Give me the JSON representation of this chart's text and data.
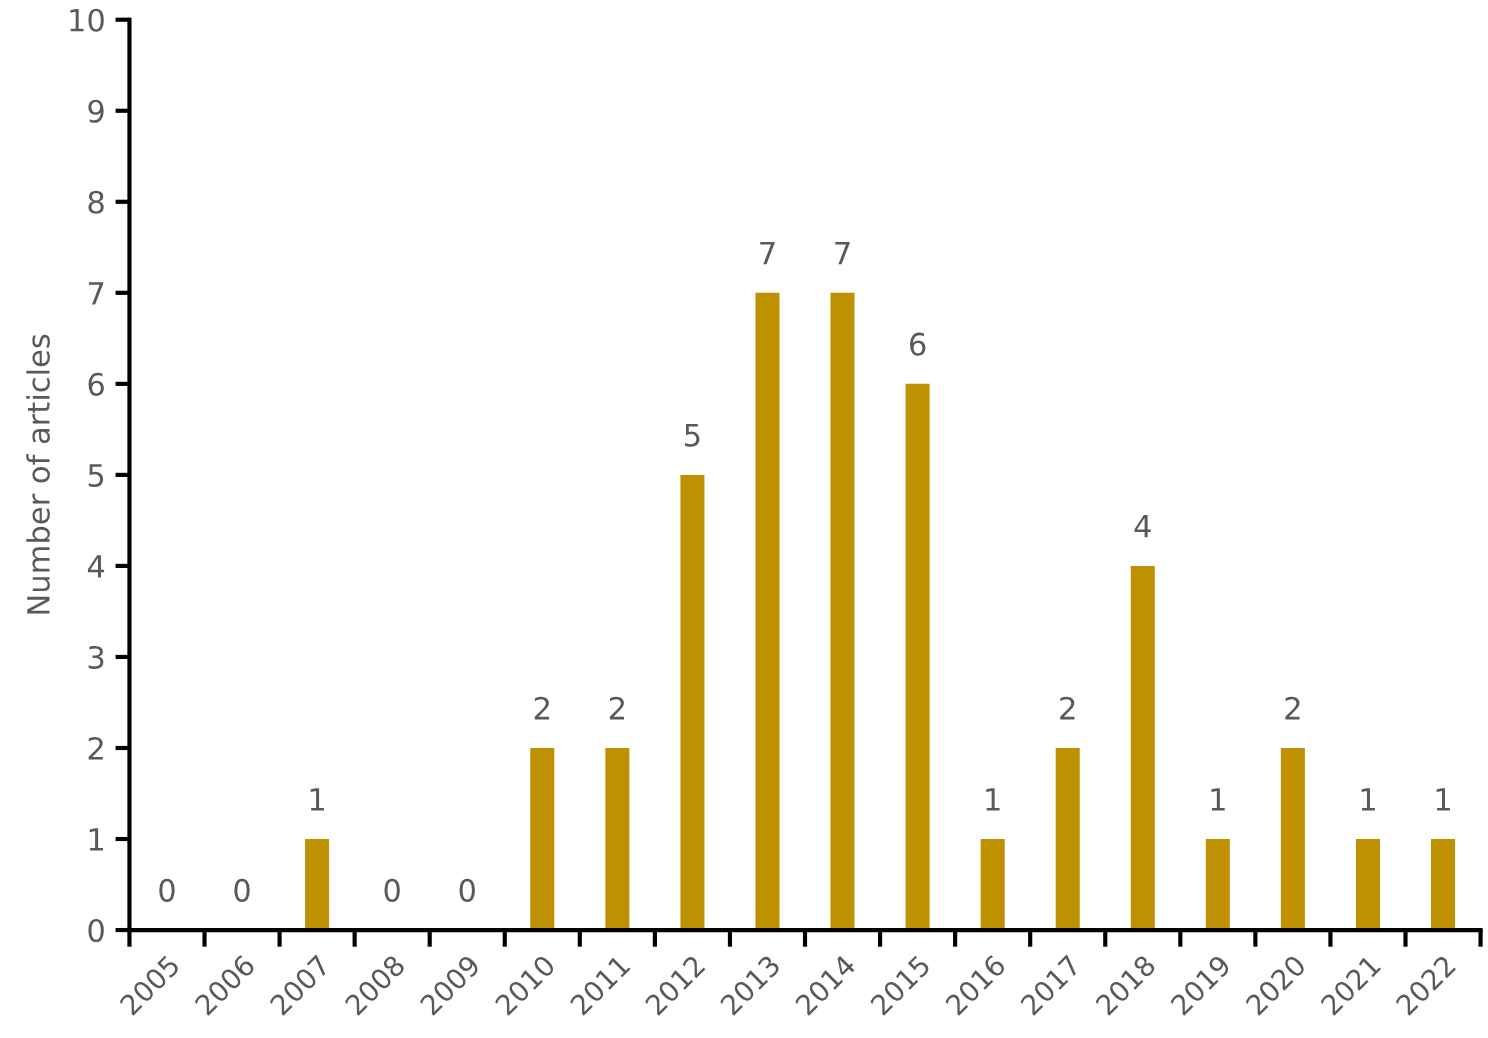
{
  "chart_data": {
    "type": "bar",
    "ylabel": "Number of articles",
    "categories": [
      "2005",
      "2006",
      "2007",
      "2008",
      "2009",
      "2010",
      "2011",
      "2012",
      "2013",
      "2014",
      "2015",
      "2016",
      "2017",
      "2018",
      "2019",
      "2020",
      "2021",
      "2022"
    ],
    "values": [
      0,
      0,
      1,
      0,
      0,
      2,
      2,
      5,
      7,
      7,
      6,
      1,
      2,
      4,
      1,
      2,
      1,
      1
    ],
    "color": "#bf9000",
    "ylim": [
      0,
      10
    ],
    "yticks": [
      0,
      1,
      2,
      3,
      4,
      5,
      6,
      7,
      8,
      9,
      10
    ],
    "data_labels": true,
    "grid": false,
    "legend": false
  }
}
